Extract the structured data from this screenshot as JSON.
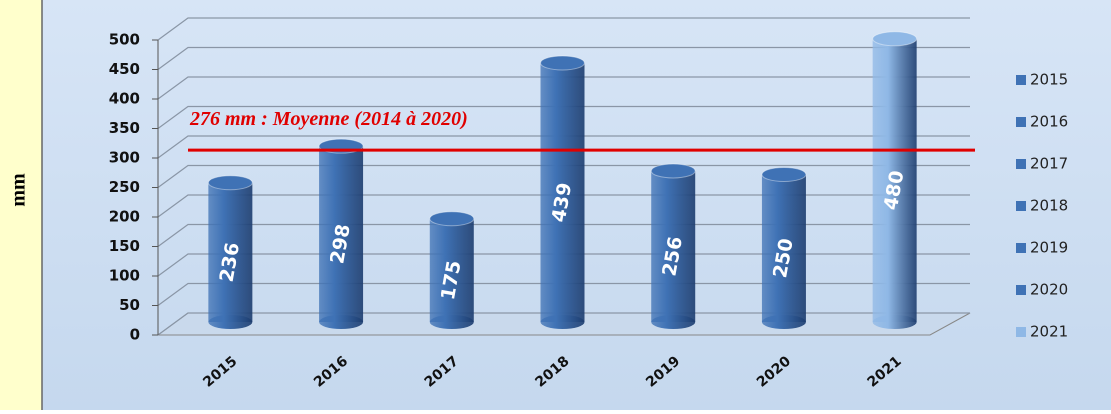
{
  "chart_data": {
    "type": "bar3d",
    "y_label": "mm",
    "categories": [
      "2015",
      "2016",
      "2017",
      "2018",
      "2019",
      "2020",
      "2021"
    ],
    "values": [
      236,
      298,
      175,
      439,
      256,
      250,
      480
    ],
    "colors": [
      "#3f72b5",
      "#3f72b5",
      "#3f72b5",
      "#3f72b5",
      "#3f72b5",
      "#3f72b5",
      "#8fb8e6"
    ],
    "ylim": [
      0,
      500
    ],
    "yticks": [
      0,
      50,
      100,
      150,
      200,
      250,
      300,
      350,
      400,
      450,
      500
    ],
    "grid": true,
    "legend": "right",
    "average": {
      "value": 276,
      "label": "276 mm : Moyenne (2014 à 2020)",
      "color": "#e00000"
    }
  }
}
